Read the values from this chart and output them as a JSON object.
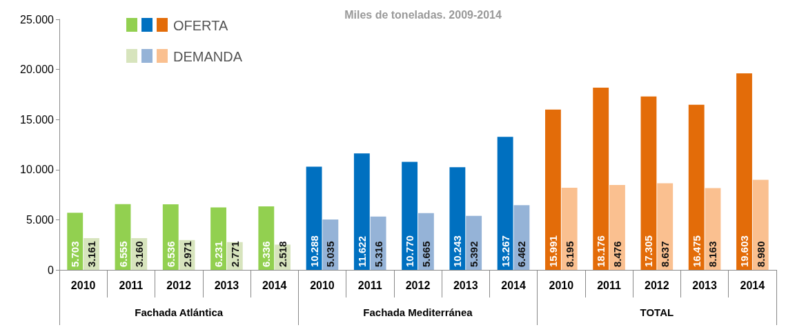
{
  "chart_data": {
    "type": "bar",
    "title": "Miles de toneladas. 2009-2014",
    "categories": [
      "2010",
      "2011",
      "2012",
      "2013",
      "2014",
      "2010",
      "2011",
      "2012",
      "2013",
      "2014",
      "2010",
      "2011",
      "2012",
      "2013",
      "2014"
    ],
    "annotations": [
      "Fachada Atlántica",
      "Fachada Mediterránea",
      "TOTAL"
    ],
    "series": [
      {
        "name": "OFERTA",
        "colors": [
          "#92d050",
          "#92d050",
          "#92d050",
          "#92d050",
          "#92d050",
          "#0070c0",
          "#0070c0",
          "#0070c0",
          "#0070c0",
          "#0070c0",
          "#e36c09",
          "#e36c09",
          "#e36c09",
          "#e36c09",
          "#e36c09"
        ],
        "values": [
          5703,
          6555,
          6536,
          6231,
          6336,
          10288,
          11622,
          10770,
          10243,
          13267,
          15991,
          18176,
          17305,
          16475,
          19603
        ],
        "value_labels": [
          "5.703",
          "6.555",
          "6.536",
          "6.231",
          "6.336",
          "10.288",
          "11.622",
          "10.770",
          "10.243",
          "13.267",
          "15.991",
          "18.176",
          "17.305",
          "16.475",
          "19.603"
        ]
      },
      {
        "name": "DEMANDA",
        "colors": [
          "#d7e4bd",
          "#d7e4bd",
          "#d7e4bd",
          "#d7e4bd",
          "#d7e4bd",
          "#95b3d7",
          "#95b3d7",
          "#95b3d7",
          "#95b3d7",
          "#95b3d7",
          "#fac090",
          "#fac090",
          "#fac090",
          "#fac090",
          "#fac090"
        ],
        "values": [
          3161,
          3160,
          2971,
          2771,
          2518,
          5035,
          5316,
          5665,
          5392,
          6462,
          8195,
          8476,
          8637,
          8163,
          8980
        ],
        "value_labels": [
          "3.161",
          "3.160",
          "2.971",
          "2.771",
          "2.518",
          "5.035",
          "5.316",
          "5.665",
          "5.392",
          "6.462",
          "8.195",
          "8.476",
          "8.637",
          "8.163",
          "8.980"
        ]
      }
    ],
    "ylim": [
      0,
      25000
    ],
    "yticks": [
      {
        "value": 0,
        "label": "0"
      },
      {
        "value": 5000,
        "label": "5.000"
      },
      {
        "value": 10000,
        "label": "10.000"
      },
      {
        "value": 15000,
        "label": "15.000"
      },
      {
        "value": 20000,
        "label": "20.000"
      },
      {
        "value": 25000,
        "label": "25.000"
      }
    ],
    "grid": false,
    "legend": "top left"
  }
}
